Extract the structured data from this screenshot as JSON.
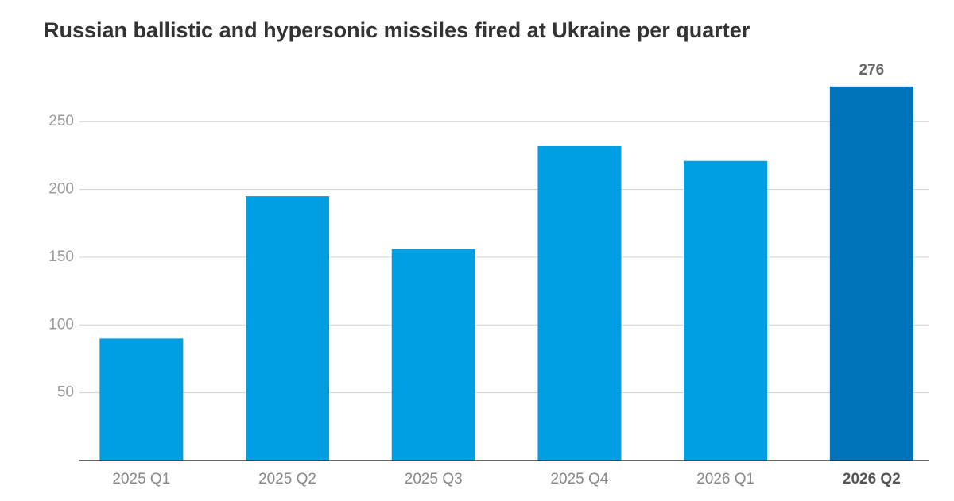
{
  "chart_data": {
    "type": "bar",
    "title": "Russian ballistic and hypersonic missiles fired at Ukraine per quarter",
    "categories": [
      "2025 Q1",
      "2025 Q2",
      "2025 Q3",
      "2025 Q4",
      "2026 Q1",
      "2026 Q2"
    ],
    "values": [
      90,
      195,
      156,
      232,
      221,
      276
    ],
    "value_labels": [
      null,
      null,
      null,
      null,
      null,
      "276"
    ],
    "colors": [
      "#009fe3",
      "#009fe3",
      "#009fe3",
      "#009fe3",
      "#009fe3",
      "#0074bb"
    ],
    "ylim": [
      0,
      280
    ],
    "yticks": [
      50,
      100,
      150,
      200,
      250
    ],
    "grid": true
  }
}
